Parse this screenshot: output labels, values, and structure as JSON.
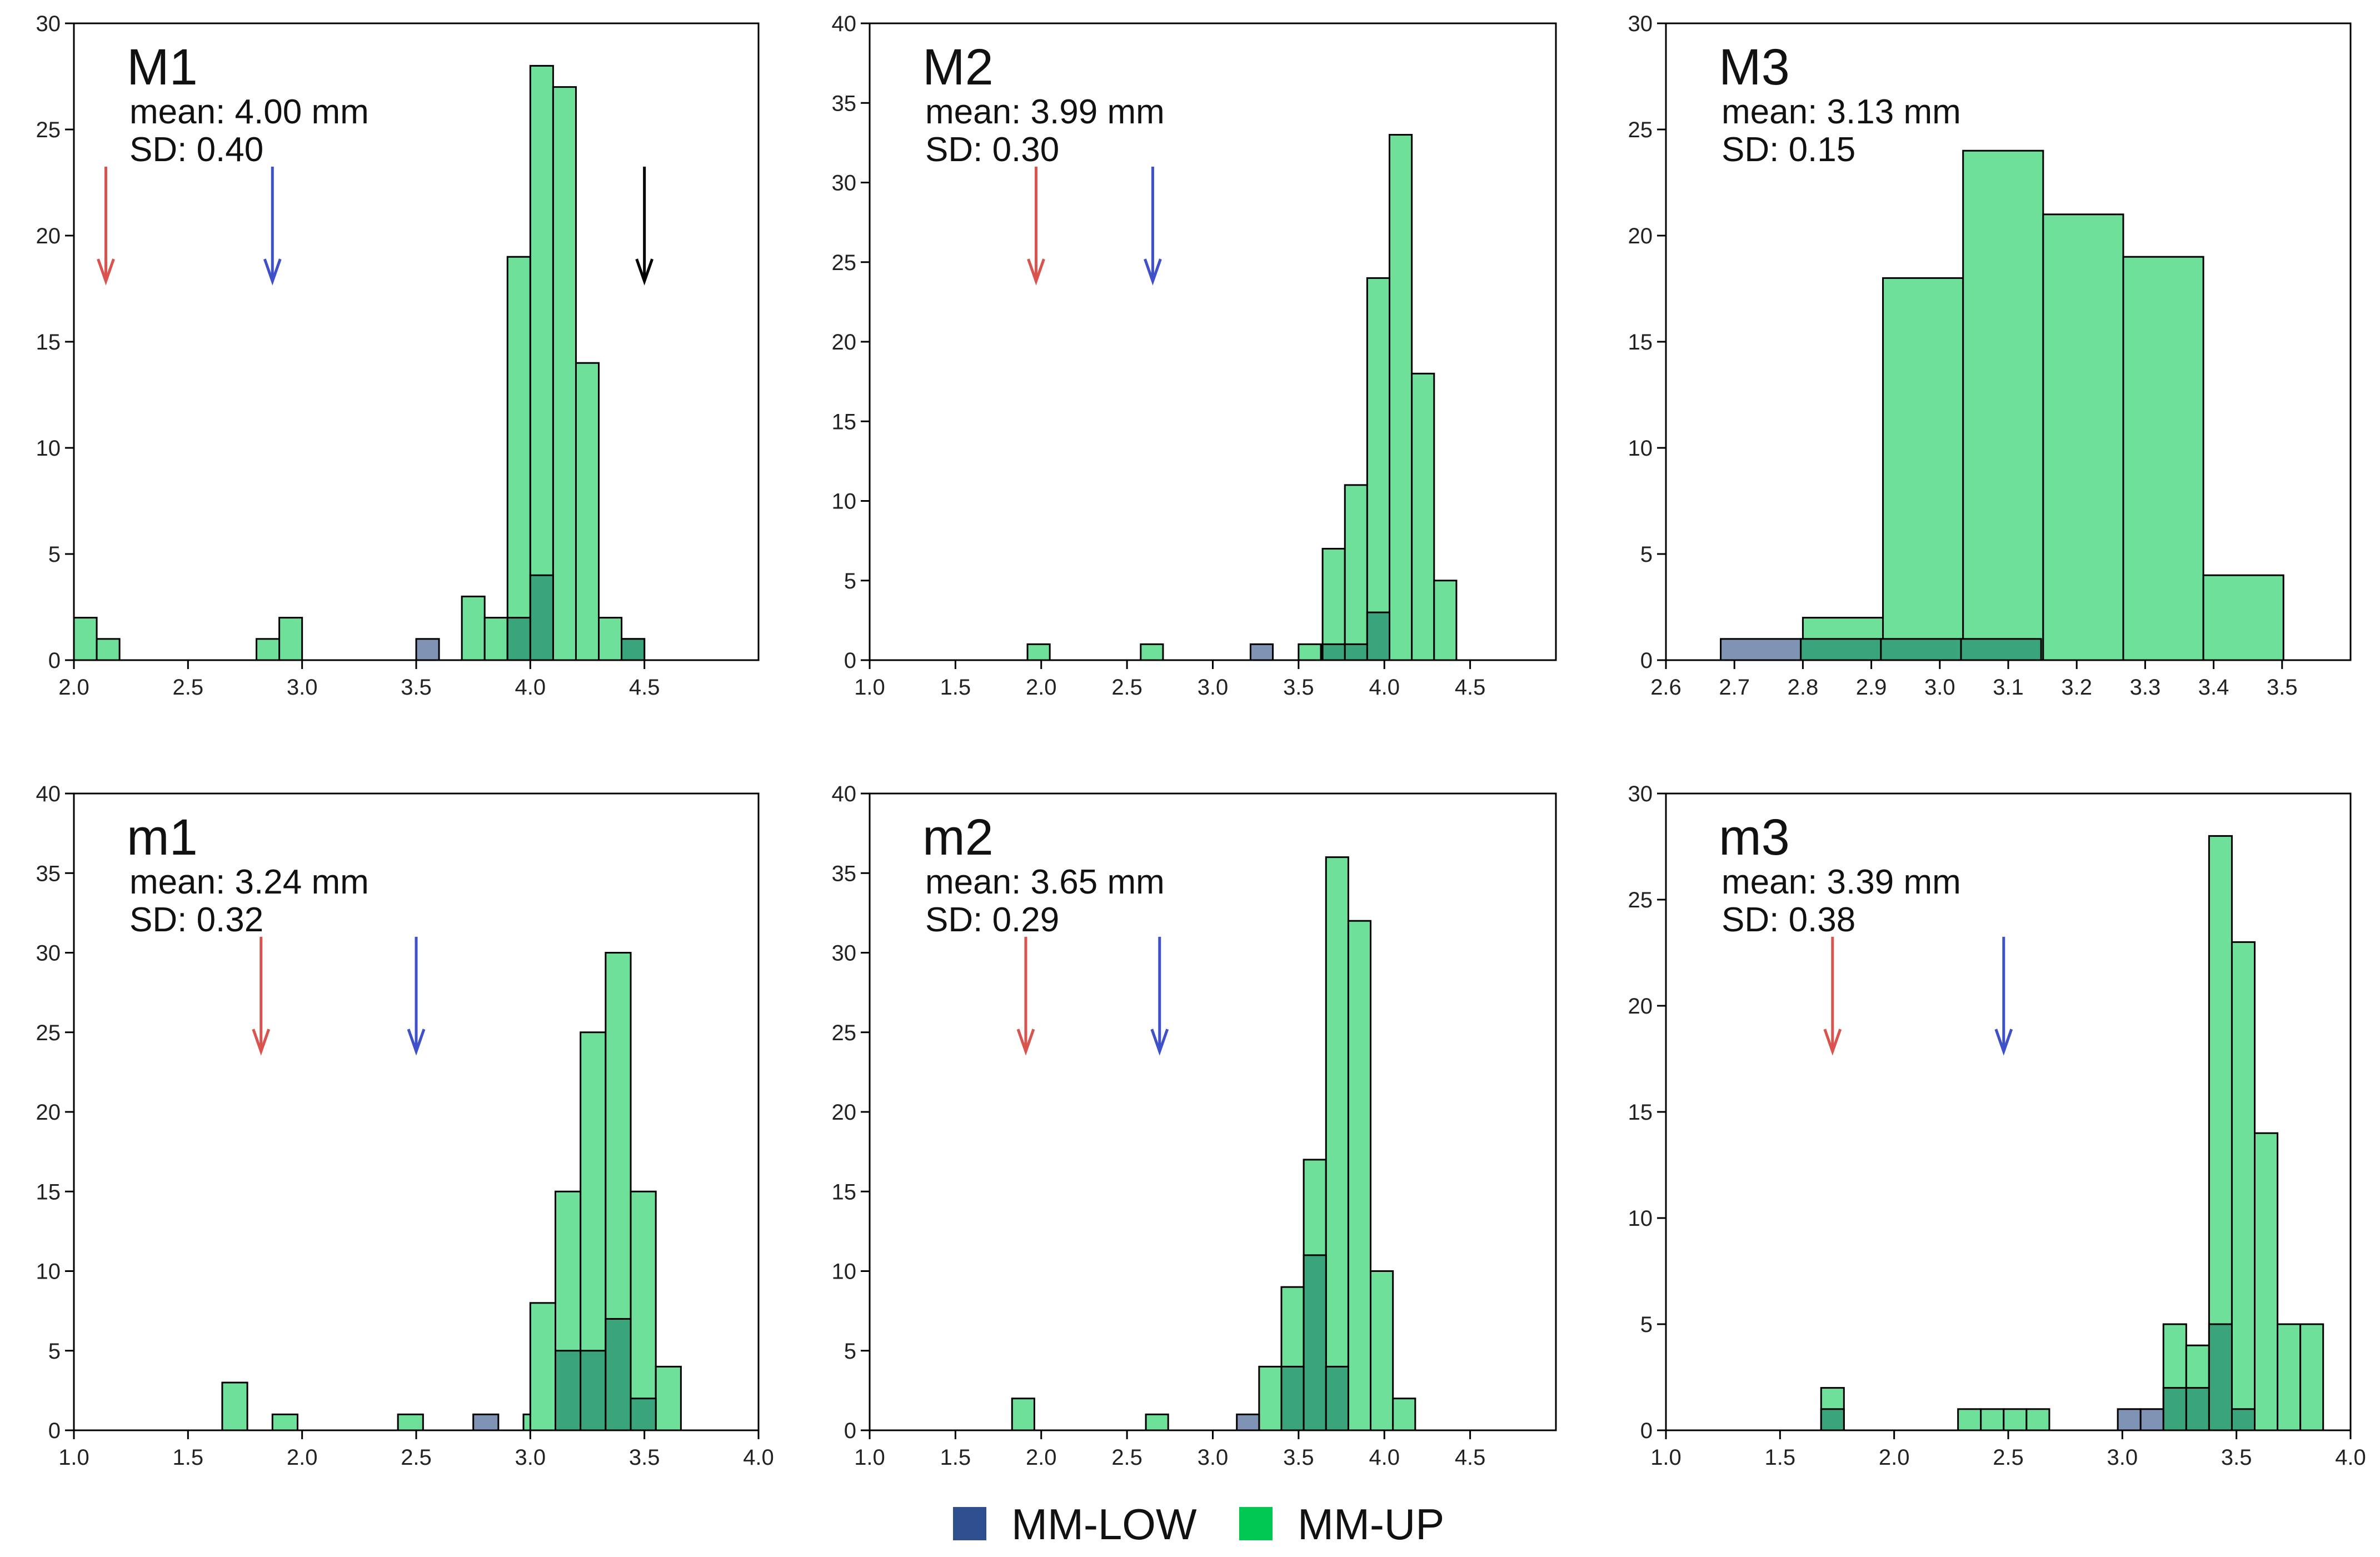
{
  "legend": {
    "items": [
      {
        "label": "MM-LOW",
        "color": "#2f4f8f"
      },
      {
        "label": "MM-UP",
        "color": "#00c853"
      }
    ]
  },
  "style": {
    "low_fill": "#7f93b5",
    "up_fill": "#6fe09a",
    "overlap_fill": "#3aa57a",
    "bar_stroke": "#000000",
    "arrow_colors": {
      "red": "#d9534f",
      "blue": "#3f51c8",
      "black": "#000000"
    }
  },
  "chart_data": [
    {
      "type": "bar",
      "title": "M1",
      "stats": {
        "mean": "mean: 4.00 mm",
        "sd": "SD: 0.40"
      },
      "xlim": [
        2.0,
        5.0
      ],
      "ylim": [
        0,
        30
      ],
      "xticks": [
        2.0,
        2.5,
        3.0,
        3.5,
        4.0,
        4.5
      ],
      "xtick_labels": [
        "2.0",
        "2.5",
        "3.0",
        "3.5",
        "4.0",
        "4.5"
      ],
      "yticks": [
        0,
        5,
        10,
        15,
        20,
        25,
        30
      ],
      "series": [
        {
          "name": "MM-UP",
          "bin_width": 0.1,
          "bins": [
            [
              2.0,
              2
            ],
            [
              2.1,
              1
            ],
            [
              2.8,
              1
            ],
            [
              2.9,
              2
            ],
            [
              3.7,
              3
            ],
            [
              3.8,
              2
            ],
            [
              3.9,
              19
            ],
            [
              4.0,
              28
            ],
            [
              4.1,
              27
            ],
            [
              4.2,
              14
            ],
            [
              4.3,
              2
            ],
            [
              4.4,
              1
            ]
          ]
        },
        {
          "name": "MM-LOW",
          "bin_width": 0.1,
          "bins": [
            [
              3.5,
              1
            ],
            [
              3.9,
              2
            ],
            [
              4.0,
              4
            ],
            [
              4.4,
              1
            ]
          ]
        }
      ],
      "arrows": [
        {
          "x": 2.14,
          "color": "red"
        },
        {
          "x": 2.87,
          "color": "blue"
        },
        {
          "x": 4.5,
          "color": "black"
        }
      ]
    },
    {
      "type": "bar",
      "title": "M2",
      "stats": {
        "mean": "mean: 3.99 mm",
        "sd": "SD: 0.30"
      },
      "xlim": [
        1.0,
        5.0
      ],
      "ylim": [
        0,
        40
      ],
      "xticks": [
        1.0,
        1.5,
        2.0,
        2.5,
        3.0,
        3.5,
        4.0,
        4.5
      ],
      "xtick_labels": [
        "1.0",
        "1.5",
        "2.0",
        "2.5",
        "3.0",
        "3.5",
        "4.0",
        "4.5"
      ],
      "yticks": [
        0,
        5,
        10,
        15,
        20,
        25,
        30,
        35,
        40
      ],
      "series": [
        {
          "name": "MM-UP",
          "bin_width": 0.13,
          "bins": [
            [
              1.92,
              1
            ],
            [
              2.58,
              1
            ],
            [
              3.5,
              1
            ],
            [
              3.64,
              7
            ],
            [
              3.77,
              11
            ],
            [
              3.9,
              24
            ],
            [
              4.03,
              33
            ],
            [
              4.16,
              18
            ],
            [
              4.29,
              5
            ]
          ]
        },
        {
          "name": "MM-LOW",
          "bin_width": 0.13,
          "bins": [
            [
              3.22,
              1
            ],
            [
              3.64,
              1
            ],
            [
              3.77,
              1
            ],
            [
              3.9,
              3
            ]
          ]
        }
      ],
      "arrows": [
        {
          "x": 1.97,
          "color": "red"
        },
        {
          "x": 2.65,
          "color": "blue"
        }
      ]
    },
    {
      "type": "bar",
      "title": "M3",
      "stats": {
        "mean": "mean: 3.13 mm",
        "sd": "SD: 0.15"
      },
      "xlim": [
        2.6,
        3.6
      ],
      "ylim": [
        0,
        30
      ],
      "xticks": [
        2.6,
        2.7,
        2.8,
        2.9,
        3.0,
        3.1,
        3.2,
        3.3,
        3.4,
        3.5
      ],
      "xtick_labels": [
        "2.6",
        "2.7",
        "2.8",
        "2.9",
        "3.0",
        "3.1",
        "3.2",
        "3.3",
        "3.4",
        "3.5"
      ],
      "yticks": [
        0,
        5,
        10,
        15,
        20,
        25,
        30
      ],
      "series": [
        {
          "name": "MM-UP",
          "bin_width": 0.117,
          "bins": [
            [
              2.8,
              2
            ],
            [
              2.917,
              18
            ],
            [
              3.034,
              24
            ],
            [
              3.151,
              21
            ],
            [
              3.268,
              19
            ],
            [
              3.385,
              4
            ]
          ]
        },
        {
          "name": "MM-LOW",
          "bin_width": 0.117,
          "bins": [
            [
              2.68,
              1
            ],
            [
              2.797,
              1
            ],
            [
              2.914,
              1
            ],
            [
              3.031,
              1
            ]
          ]
        }
      ],
      "arrows": []
    },
    {
      "type": "bar",
      "title": "m1",
      "stats": {
        "mean": "mean: 3.24 mm",
        "sd": "SD: 0.32"
      },
      "xlim": [
        1.0,
        4.0
      ],
      "ylim": [
        0,
        40
      ],
      "xticks": [
        1.0,
        1.5,
        2.0,
        2.5,
        3.0,
        3.5,
        4.0
      ],
      "xtick_labels": [
        "1.0",
        "1.5",
        "2.0",
        "2.5",
        "3.0",
        "3.5",
        "4.0"
      ],
      "yticks": [
        0,
        5,
        10,
        15,
        20,
        25,
        30,
        35,
        40
      ],
      "series": [
        {
          "name": "MM-UP",
          "bin_width": 0.11,
          "bins": [
            [
              1.65,
              3
            ],
            [
              1.87,
              1
            ],
            [
              2.42,
              1
            ],
            [
              2.97,
              1
            ],
            [
              3.0,
              8
            ],
            [
              3.11,
              15
            ],
            [
              3.22,
              25
            ],
            [
              3.33,
              30
            ],
            [
              3.44,
              15
            ],
            [
              3.55,
              4
            ]
          ]
        },
        {
          "name": "MM-LOW",
          "bin_width": 0.11,
          "bins": [
            [
              2.75,
              1
            ],
            [
              3.11,
              5
            ],
            [
              3.22,
              5
            ],
            [
              3.33,
              7
            ],
            [
              3.44,
              2
            ]
          ]
        }
      ],
      "arrows": [
        {
          "x": 1.82,
          "color": "red"
        },
        {
          "x": 2.5,
          "color": "blue"
        }
      ]
    },
    {
      "type": "bar",
      "title": "m2",
      "stats": {
        "mean": "mean: 3.65 mm",
        "sd": "SD: 0.29"
      },
      "xlim": [
        1.0,
        5.0
      ],
      "ylim": [
        0,
        40
      ],
      "xticks": [
        1.0,
        1.5,
        2.0,
        2.5,
        3.0,
        3.5,
        4.0,
        4.5
      ],
      "xtick_labels": [
        "1.0",
        "1.5",
        "2.0",
        "2.5",
        "3.0",
        "3.5",
        "4.0",
        "4.5"
      ],
      "yticks": [
        0,
        5,
        10,
        15,
        20,
        25,
        30,
        35,
        40
      ],
      "series": [
        {
          "name": "MM-UP",
          "bin_width": 0.13,
          "bins": [
            [
              1.83,
              2
            ],
            [
              2.61,
              1
            ],
            [
              3.27,
              4
            ],
            [
              3.4,
              9
            ],
            [
              3.53,
              17
            ],
            [
              3.66,
              36
            ],
            [
              3.79,
              32
            ],
            [
              3.92,
              10
            ],
            [
              4.05,
              2
            ]
          ]
        },
        {
          "name": "MM-LOW",
          "bin_width": 0.13,
          "bins": [
            [
              3.14,
              1
            ],
            [
              3.4,
              4
            ],
            [
              3.53,
              11
            ],
            [
              3.66,
              4
            ]
          ]
        }
      ],
      "arrows": [
        {
          "x": 1.91,
          "color": "red"
        },
        {
          "x": 2.69,
          "color": "blue"
        }
      ]
    },
    {
      "type": "bar",
      "title": "m3",
      "stats": {
        "mean": "mean: 3.39 mm",
        "sd": "SD: 0.38"
      },
      "xlim": [
        1.0,
        4.0
      ],
      "ylim": [
        0,
        30
      ],
      "xticks": [
        1.0,
        1.5,
        2.0,
        2.5,
        3.0,
        3.5,
        4.0
      ],
      "xtick_labels": [
        "1.0",
        "1.5",
        "2.0",
        "2.5",
        "3.0",
        "3.5",
        "4.0"
      ],
      "yticks": [
        0,
        5,
        10,
        15,
        20,
        25,
        30
      ],
      "series": [
        {
          "name": "MM-UP",
          "bin_width": 0.1,
          "bins": [
            [
              1.68,
              2
            ],
            [
              2.28,
              1
            ],
            [
              2.38,
              1
            ],
            [
              2.48,
              1
            ],
            [
              2.58,
              1
            ],
            [
              3.18,
              5
            ],
            [
              3.28,
              4
            ],
            [
              3.38,
              28
            ],
            [
              3.48,
              23
            ],
            [
              3.58,
              14
            ],
            [
              3.68,
              5
            ],
            [
              3.78,
              5
            ]
          ]
        },
        {
          "name": "MM-LOW",
          "bin_width": 0.1,
          "bins": [
            [
              1.68,
              1
            ],
            [
              2.98,
              1
            ],
            [
              3.08,
              1
            ],
            [
              3.18,
              2
            ],
            [
              3.28,
              2
            ],
            [
              3.38,
              5
            ],
            [
              3.48,
              1
            ]
          ]
        }
      ],
      "arrows": [
        {
          "x": 1.73,
          "color": "red"
        },
        {
          "x": 2.48,
          "color": "blue"
        }
      ]
    }
  ]
}
